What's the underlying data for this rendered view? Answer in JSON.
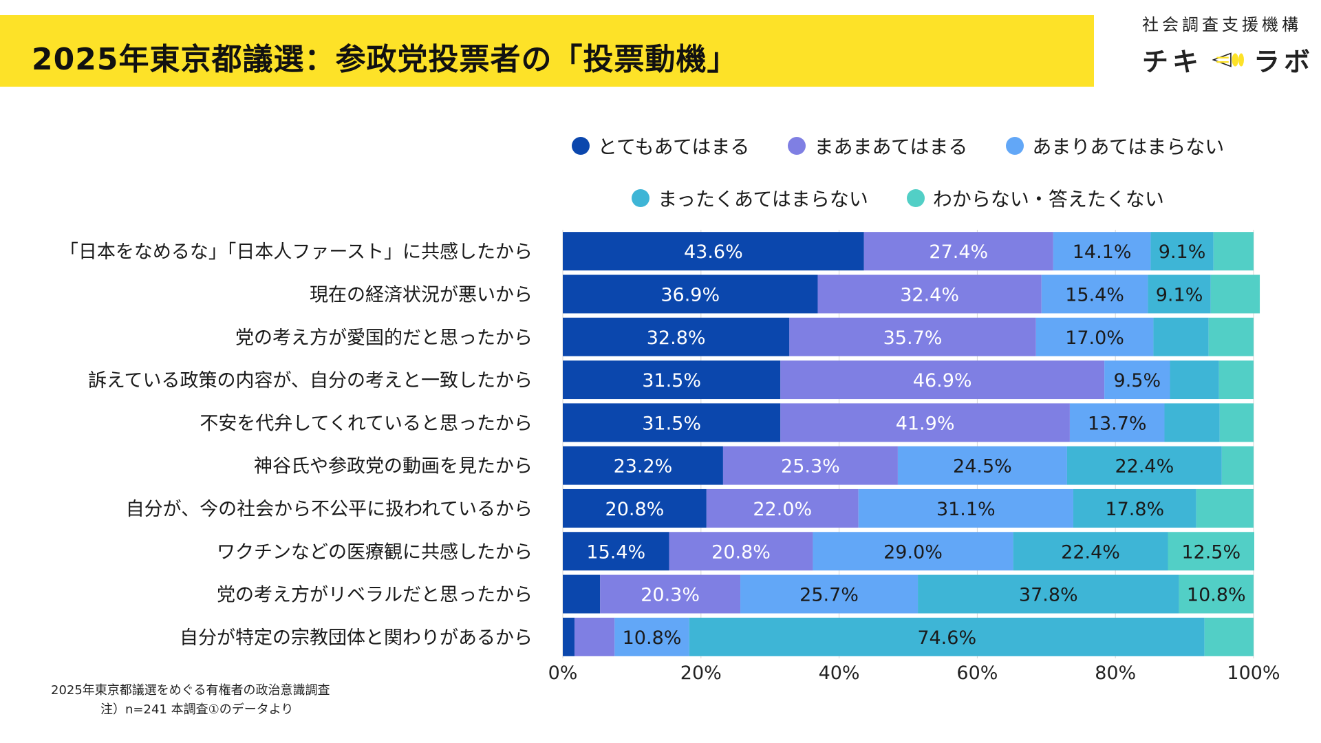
{
  "header": {
    "title": "2025年東京都議選：参政党投票者の「投票動機」"
  },
  "brand": {
    "org": "社会調査支援機構",
    "name_left": "チキ",
    "name_right": "ラボ"
  },
  "colors": {
    "title_bar": "#fde228",
    "series": [
      "#0b47ad",
      "#7f7fe3",
      "#62a7f7",
      "#3eb5d6",
      "#52cfc6"
    ]
  },
  "chart_data": {
    "type": "bar",
    "orientation": "horizontal",
    "stacked": true,
    "categories": [
      "「日本をなめるな」「日本人ファースト」に共感したから",
      "現在の経済状況が悪いから",
      "党の考え方が愛国的だと思ったから",
      "訴えている政策の内容が、自分の考えと一致したから",
      "不安を代弁してくれていると思ったから",
      "神谷氏や参政党の動画を見たから",
      "自分が、今の社会から不公平に扱われているから",
      "ワクチンなどの医療観に共感したから",
      "党の考え方がリベラルだと思ったから",
      "自分が特定の宗教団体と関わりがあるから"
    ],
    "series": [
      {
        "name": "とてもあてはまる",
        "values": [
          43.6,
          36.9,
          32.8,
          31.5,
          31.5,
          23.2,
          20.8,
          15.4,
          5.4,
          1.7
        ],
        "labels": [
          "43.6%",
          "36.9%",
          "32.8%",
          "31.5%",
          "31.5%",
          "23.2%",
          "20.8%",
          "15.4%",
          "",
          ""
        ]
      },
      {
        "name": "まあまあてはまる",
        "values": [
          27.4,
          32.4,
          35.7,
          46.9,
          41.9,
          25.3,
          22.0,
          20.8,
          20.3,
          5.8
        ],
        "labels": [
          "27.4%",
          "32.4%",
          "35.7%",
          "46.9%",
          "41.9%",
          "25.3%",
          "22.0%",
          "20.8%",
          "20.3%",
          ""
        ]
      },
      {
        "name": "あまりあてはまらない",
        "values": [
          14.1,
          15.4,
          17.0,
          9.5,
          13.7,
          24.5,
          31.1,
          29.0,
          25.7,
          10.8
        ],
        "labels": [
          "14.1%",
          "15.4%",
          "17.0%",
          "9.5%",
          "13.7%",
          "24.5%",
          "31.1%",
          "29.0%",
          "25.7%",
          "10.8%"
        ]
      },
      {
        "name": "まったくあてはまらない",
        "values": [
          9.1,
          9.1,
          8.0,
          7.1,
          8.0,
          22.4,
          17.8,
          22.4,
          37.8,
          74.6
        ],
        "labels": [
          "9.1%",
          "9.1%",
          "",
          "",
          "",
          "22.4%",
          "17.8%",
          "22.4%",
          "37.8%",
          "74.6%"
        ]
      },
      {
        "name": "わからない・答えたくない",
        "values": [
          5.8,
          7.1,
          6.5,
          5.0,
          4.9,
          4.6,
          8.3,
          12.5,
          10.8,
          7.1
        ],
        "labels": [
          "",
          "",
          "",
          "",
          "",
          "",
          "",
          "12.5%",
          "10.8%",
          ""
        ]
      }
    ],
    "label_colors": [
      "#ffffff",
      "#ffffff",
      "#1a1a1a",
      "#1a1a1a",
      "#1a1a1a"
    ],
    "xlim": [
      0,
      100
    ],
    "x_ticks": [
      "0%",
      "20%",
      "40%",
      "60%",
      "80%",
      "100%"
    ],
    "grid": true,
    "legend_position": "top"
  },
  "footer": {
    "source": "2025年東京都議選をめぐる有権者の政治意識調査",
    "note": "注）n=241 本調査①のデータより"
  }
}
